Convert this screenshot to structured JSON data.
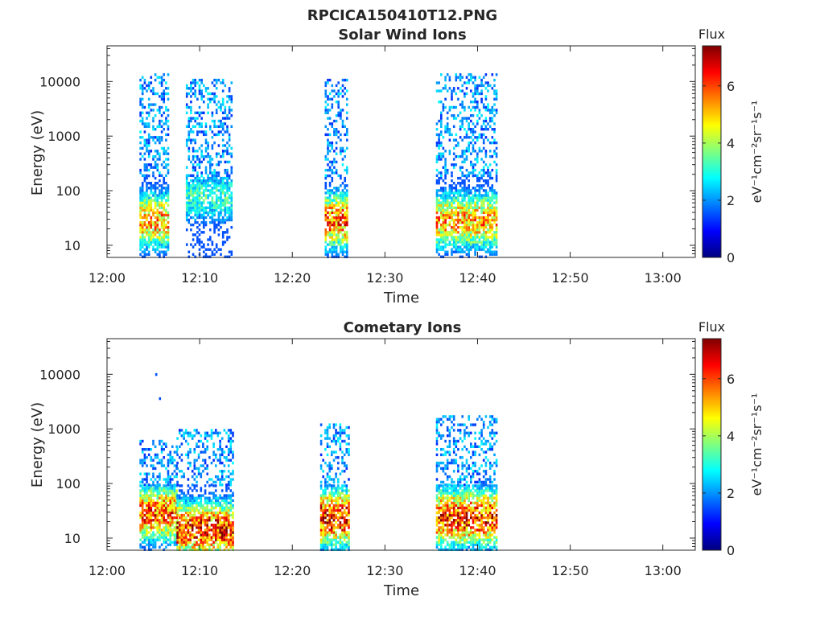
{
  "page_title": "RPCICA150410T12.PNG",
  "colors": {
    "axis": "#262626",
    "colormap": [
      "#00007f",
      "#0000ff",
      "#007fff",
      "#00ffff",
      "#7fff7f",
      "#ffff00",
      "#ff7f00",
      "#ff0000",
      "#7f0000"
    ]
  },
  "chart_data": [
    {
      "type": "heatmap",
      "title": "Solar Wind Ions",
      "xlabel": "Time",
      "ylabel": "Energy (eV)",
      "xticks": [
        "12:00",
        "12:10",
        "12:20",
        "12:30",
        "12:40",
        "12:50",
        "13:00"
      ],
      "xlim_minutes": [
        0,
        63.5
      ],
      "yscale": "log",
      "ylim": [
        6,
        45000
      ],
      "yticks": [
        10,
        100,
        1000,
        10000
      ],
      "ytick_labels": [
        "10",
        "100",
        "1000",
        "10000"
      ],
      "colorbar": {
        "label": "Flux",
        "unit": "eV⁻¹cm⁻²sr⁻¹s⁻¹",
        "ticks": [
          "0",
          "2",
          "4",
          "6"
        ],
        "range": [
          0,
          7.4
        ]
      },
      "bursts": [
        {
          "t_start": "12:03.5",
          "t_end": "12:06.5",
          "low_energy_peak_eV": 30,
          "peak_flux": 5.8,
          "high_energy_range_eV": [
            200,
            15000
          ]
        },
        {
          "t_start": "12:08.5",
          "t_end": "12:13.5",
          "low_energy_peak_eV": 80,
          "peak_flux": 3.5,
          "high_energy_range_eV": [
            200,
            12000
          ]
        },
        {
          "t_start": "12:23.5",
          "t_end": "12:26.0",
          "low_energy_peak_eV": 30,
          "peak_flux": 6.3,
          "high_energy_range_eV": [
            200,
            12000
          ]
        },
        {
          "t_start": "12:35.5",
          "t_end": "12:42.0",
          "low_energy_peak_eV": 30,
          "peak_flux": 5.8,
          "high_energy_range_eV": [
            200,
            15000
          ]
        }
      ]
    },
    {
      "type": "heatmap",
      "title": "Cometary Ions",
      "xlabel": "Time",
      "ylabel": "Energy (eV)",
      "xticks": [
        "12:00",
        "12:10",
        "12:20",
        "12:30",
        "12:40",
        "12:50",
        "13:00"
      ],
      "xlim_minutes": [
        0,
        63.5
      ],
      "yscale": "log",
      "ylim": [
        6,
        45000
      ],
      "yticks": [
        10,
        100,
        1000,
        10000
      ],
      "ytick_labels": [
        "10",
        "100",
        "1000",
        "10000"
      ],
      "colorbar": {
        "label": "Flux",
        "unit": "eV⁻¹cm⁻²sr⁻¹s⁻¹",
        "ticks": [
          "0",
          "2",
          "4",
          "6"
        ],
        "range": [
          0,
          7.4
        ]
      },
      "bursts": [
        {
          "t_start": "12:03.5",
          "t_end": "12:07.5",
          "low_energy_peak_eV": 30,
          "peak_flux": 6.5,
          "high_energy_range_eV": [
            100,
            700
          ]
        },
        {
          "t_start": "12:07.5",
          "t_end": "12:13.5",
          "low_energy_peak_eV": 15,
          "peak_flux": 7.0,
          "high_energy_range_eV": [
            100,
            1000
          ]
        },
        {
          "t_start": "12:23.0",
          "t_end": "12:26.0",
          "low_energy_peak_eV": 25,
          "peak_flux": 7.2,
          "high_energy_range_eV": [
            100,
            1300
          ]
        },
        {
          "t_start": "12:35.5",
          "t_end": "12:42.0",
          "low_energy_peak_eV": 25,
          "peak_flux": 7.0,
          "high_energy_range_eV": [
            100,
            1800
          ]
        }
      ],
      "isolated_points": [
        {
          "t": "12:05.2",
          "energy_eV": 10500,
          "flux": 1.5
        },
        {
          "t": "12:05.6",
          "energy_eV": 3800,
          "flux": 1.5
        }
      ]
    }
  ]
}
